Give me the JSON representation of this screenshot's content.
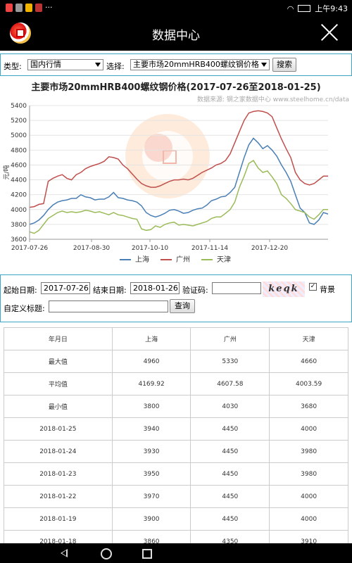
{
  "statusbar": {
    "time": "上午9:43"
  },
  "appbar": {
    "title": "数据中心"
  },
  "filter": {
    "type_label": "类型:",
    "type_value": "国内行情",
    "choose_label": "选择:",
    "choose_value": "主要市场20mmHRB400螺纹钢价格",
    "search_button": "搜索"
  },
  "chart_data": {
    "type": "line",
    "title": "主要市场20mmHRB400螺纹钢价格(2017-07-26至2018-01-25)",
    "source": "数据来源: 钢之家数据中心 www.steelhome.cn/data",
    "ylabel": "元/吨",
    "ylim": [
      3600,
      5400
    ],
    "yticks": [
      "5400",
      "5200",
      "5000",
      "4800",
      "4600",
      "4400",
      "4200",
      "4000",
      "3800",
      "3600"
    ],
    "xticks": [
      "2017-07-26",
      "2017-08-30",
      "2017-10-10",
      "2017-11-14",
      "2017-12-20"
    ],
    "grid": true,
    "legend_position": "bottom",
    "series": [
      {
        "name": "上海",
        "color": "#4a7fb5",
        "values": [
          3800,
          3820,
          3860,
          3920,
          4000,
          4060,
          4100,
          4120,
          4130,
          4150,
          4150,
          4200,
          4170,
          4160,
          4130,
          4140,
          4140,
          4170,
          4230,
          4160,
          4150,
          4130,
          4120,
          4100,
          4050,
          3960,
          3920,
          3900,
          3920,
          3950,
          3990,
          4000,
          3980,
          3950,
          3960,
          3990,
          4010,
          4020,
          4060,
          4120,
          4140,
          4170,
          4180,
          4230,
          4300,
          4500,
          4700,
          4870,
          4960,
          4900,
          4820,
          4860,
          4800,
          4720,
          4600,
          4500,
          4380,
          4200,
          4020,
          3960,
          3820,
          3800,
          3860,
          3960,
          3940
        ]
      },
      {
        "name": "广州",
        "color": "#c0504d",
        "values": [
          4030,
          4040,
          4070,
          4080,
          4380,
          4420,
          4450,
          4470,
          4420,
          4400,
          4470,
          4500,
          4550,
          4580,
          4600,
          4620,
          4650,
          4710,
          4700,
          4680,
          4600,
          4550,
          4480,
          4410,
          4350,
          4320,
          4300,
          4300,
          4320,
          4350,
          4380,
          4400,
          4400,
          4410,
          4400,
          4420,
          4460,
          4500,
          4530,
          4560,
          4600,
          4620,
          4660,
          4750,
          4900,
          5050,
          5200,
          5300,
          5320,
          5330,
          5320,
          5300,
          5250,
          5100,
          4950,
          4820,
          4700,
          4500,
          4400,
          4350,
          4330,
          4350,
          4400,
          4450,
          4450
        ]
      },
      {
        "name": "天津",
        "color": "#9bbb59",
        "values": [
          3700,
          3680,
          3720,
          3800,
          3880,
          3920,
          3960,
          3980,
          3960,
          3970,
          3960,
          3970,
          3990,
          3980,
          3960,
          3970,
          3950,
          3930,
          3960,
          3930,
          3920,
          3900,
          3880,
          3870,
          3740,
          3720,
          3730,
          3780,
          3760,
          3800,
          3820,
          3830,
          3790,
          3800,
          3790,
          3780,
          3800,
          3820,
          3840,
          3880,
          3900,
          3900,
          3950,
          4000,
          4100,
          4300,
          4450,
          4620,
          4660,
          4560,
          4500,
          4520,
          4440,
          4350,
          4200,
          4150,
          4080,
          4000,
          3980,
          3960,
          3900,
          3870,
          3930,
          4000,
          4000
        ]
      }
    ]
  },
  "custom": {
    "start_label": "起始日期:",
    "start_value": "2017-07-26",
    "end_label": "结束日期:",
    "end_value": "2018-01-26",
    "captcha_label": "验证码:",
    "captcha_text": "keqk",
    "background_label": "背景",
    "title_label": "自定义标题:",
    "query_button": "查询"
  },
  "table": {
    "headers": [
      "年月日",
      "上海",
      "广州",
      "天津"
    ],
    "rows": [
      [
        "最大值",
        "4960",
        "5330",
        "4660"
      ],
      [
        "平均值",
        "4169.92",
        "4607.58",
        "4003.59"
      ],
      [
        "最小值",
        "3800",
        "4030",
        "3680"
      ],
      [
        "2018-01-25",
        "3940",
        "4450",
        "4000"
      ],
      [
        "2018-01-24",
        "3930",
        "4450",
        "3980"
      ],
      [
        "2018-01-23",
        "3950",
        "4450",
        "3980"
      ],
      [
        "2018-01-22",
        "3970",
        "4450",
        "4000"
      ],
      [
        "2018-01-19",
        "3900",
        "4450",
        "4000"
      ],
      [
        "2018-01-18",
        "3860",
        "4350",
        "3910"
      ]
    ]
  }
}
